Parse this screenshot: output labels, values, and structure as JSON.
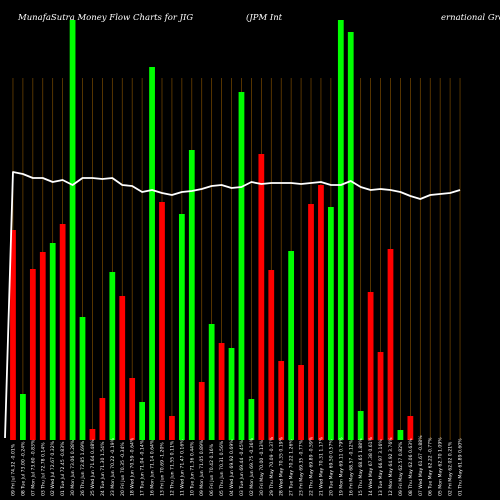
{
  "header": {
    "left": "MunafaSutra  Money Flow  Charts for JIG",
    "middle": "(JPM Int",
    "right": "ernational Growth ETF)"
  },
  "colors": {
    "background": "#000000",
    "up": "#00ff00",
    "down": "#ff0000",
    "line": "#ffffff",
    "grid": "#7a4a00"
  },
  "chart_data": {
    "type": "bar",
    "ylim": [
      0,
      440
    ],
    "line_ylim": [
      0,
      440
    ],
    "categories": [
      "09 Fri Jul 74.32 -0.01%",
      "08 Tue Jul 73.00 -0.24%",
      "07 Mon Jul 73.60 -0.83%",
      "03 Thu Jul 72.78 0.14%",
      "02 Wed Jul 72.67 0.32%",
      "01 Tue Jul 72.45 -0.83%",
      "30 Mon Jun 73.06 0.28%",
      "26 Thu Jun 72.85 1.69%",
      "25 Wed Jun 71.64 0.48%",
      "24 Tue Jun 71.30 1.54%",
      "23 Mon Jun 70.22 -0.19%",
      "20 Fri Jun 70.35 -0.34%",
      "18 Wed Jun 70.59 -0.64%",
      "17 Tue Jun 71.04 -0.14%",
      "16 Mon Jun 71.14 0.64%",
      "13 Fri Jun 70.69 -1.20%",
      "12 Thu Jun 71.55 0.11%",
      "11 Wed Jun 71.47 0.16%",
      "10 Tue Jun 71.36 0.44%",
      "09 Mon Jun 71.05 0.89%",
      "06 Fri Jun 70.42 0.16%",
      "05 Thu Jun 70.31 0.56%",
      "04 Wed Jun 69.92 0.69%",
      "03 Tue Jun 69.44 -0.45%",
      "02 Mon Jun 69.75 -0.36%",
      "30 Fri May 70.00 -0.13%",
      "29 Thu May 70.09 -0.37%",
      "28 Wed May 70.35 0.19%",
      "27 Tue May 70.22 1.26%",
      "23 Fri May 69.35 -0.77%",
      "22 Thu May 69.89 -0.59%",
      "21 Wed May 70.31 1.17%",
      "20 Tue May 69.50 0.57%",
      "19 Mon May 69.11 0.79%",
      "16 Fri May 68.57 -0.12%",
      "15 Thu May 68.65 1.88%",
      "14 Wed May 67.38 0.61%",
      "13 Tue May 66.97 3.16%",
      "12 Mon May 64.92 3.76%",
      "09 Fri May 62.57 0.82%",
      "08 Thu May 62.06 0.63%",
      "07 Wed May 61.67 -0.88%",
      "06 Tue May 62.22 -0.77%",
      "05 Mon May 62.70 1.09%",
      "02 Fri May 62.02 0.21%",
      "01 Thu May 61.89 0.60%"
    ],
    "colors": [
      "r",
      "g",
      "r",
      "r",
      "g",
      "r",
      "g",
      "g",
      "r",
      "r",
      "g",
      "r",
      "r",
      "g",
      "g",
      "r",
      "r",
      "g",
      "g",
      "r",
      "g",
      "r",
      "g",
      "g",
      "g",
      "r",
      "r",
      "r",
      "g",
      "r",
      "r",
      "r",
      "g",
      "g",
      "g",
      "g",
      "r",
      "r",
      "r",
      "g",
      "r",
      "g",
      "g",
      "g",
      "g",
      "r"
    ],
    "values": [
      210,
      46,
      171,
      188,
      197,
      216,
      420,
      123,
      11,
      42,
      168,
      144,
      62,
      38,
      373,
      238,
      24,
      226,
      290,
      58,
      116,
      97,
      92,
      348,
      41,
      286,
      170,
      79,
      189,
      75,
      236,
      255,
      233,
      420,
      408,
      29,
      148,
      88,
      191,
      10,
      24,
      0,
      0,
      0,
      0,
      0
    ],
    "line": [
      268,
      266,
      262,
      262,
      258,
      260,
      255,
      262,
      262,
      261,
      262,
      255,
      254,
      248,
      250,
      247,
      245,
      248,
      249,
      251,
      254,
      255,
      252,
      253,
      258,
      256,
      257,
      257,
      257,
      256,
      257,
      258,
      255,
      255,
      259,
      253,
      250,
      251,
      250,
      248,
      244,
      241,
      245,
      246,
      247,
      250
    ]
  }
}
